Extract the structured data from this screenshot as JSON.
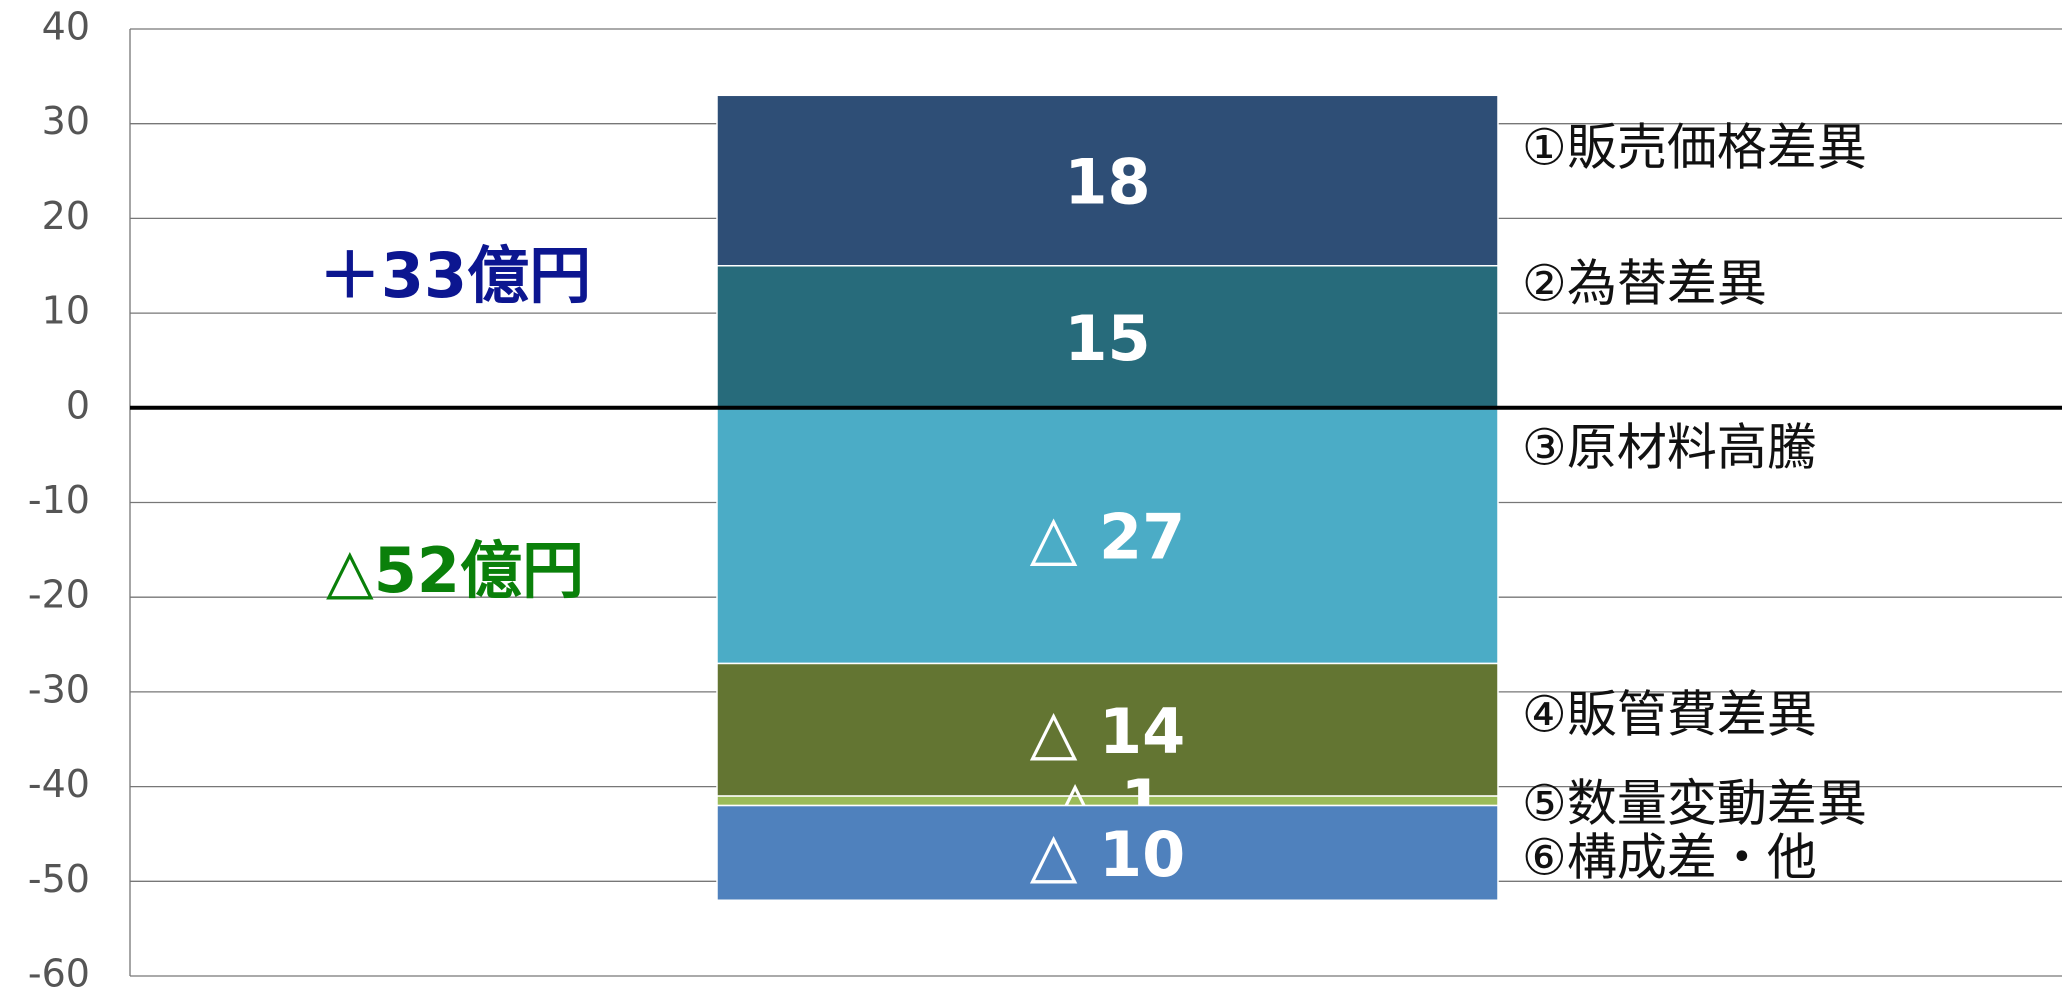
{
  "chart_data": {
    "type": "stacked_bar",
    "categories": [
      null
    ],
    "series": [
      {
        "name": "①販売価格差異",
        "color": "#2e4e76",
        "values": [
          18
        ]
      },
      {
        "name": "②為替差異",
        "color": "#276b7b",
        "values": [
          15
        ]
      },
      {
        "name": "③原材料高騰",
        "color": "#4bacc6",
        "values": [
          -27
        ],
        "value_labels": [
          "△ 27"
        ]
      },
      {
        "name": "④販管費差異",
        "color": "#637532",
        "values": [
          -14
        ],
        "value_labels": [
          "△ 14"
        ]
      },
      {
        "name": "⑤数量変動差異",
        "color": "#9bbb59",
        "values": [
          -1
        ],
        "value_labels": [
          "△ 1"
        ]
      },
      {
        "name": "⑥構成差・他",
        "color": "#4f81bd",
        "values": [
          -10
        ],
        "value_labels": [
          "△ 10"
        ]
      }
    ],
    "annotations": [
      {
        "text": "＋33億円",
        "color": "#0c1690"
      },
      {
        "text": "△52億円",
        "color": "#0a800a"
      }
    ],
    "ylim": [
      -60,
      40
    ],
    "yticks": [
      -60,
      -50,
      -40,
      -30,
      -20,
      -10,
      0,
      10,
      20,
      30,
      40
    ],
    "grid": true
  }
}
